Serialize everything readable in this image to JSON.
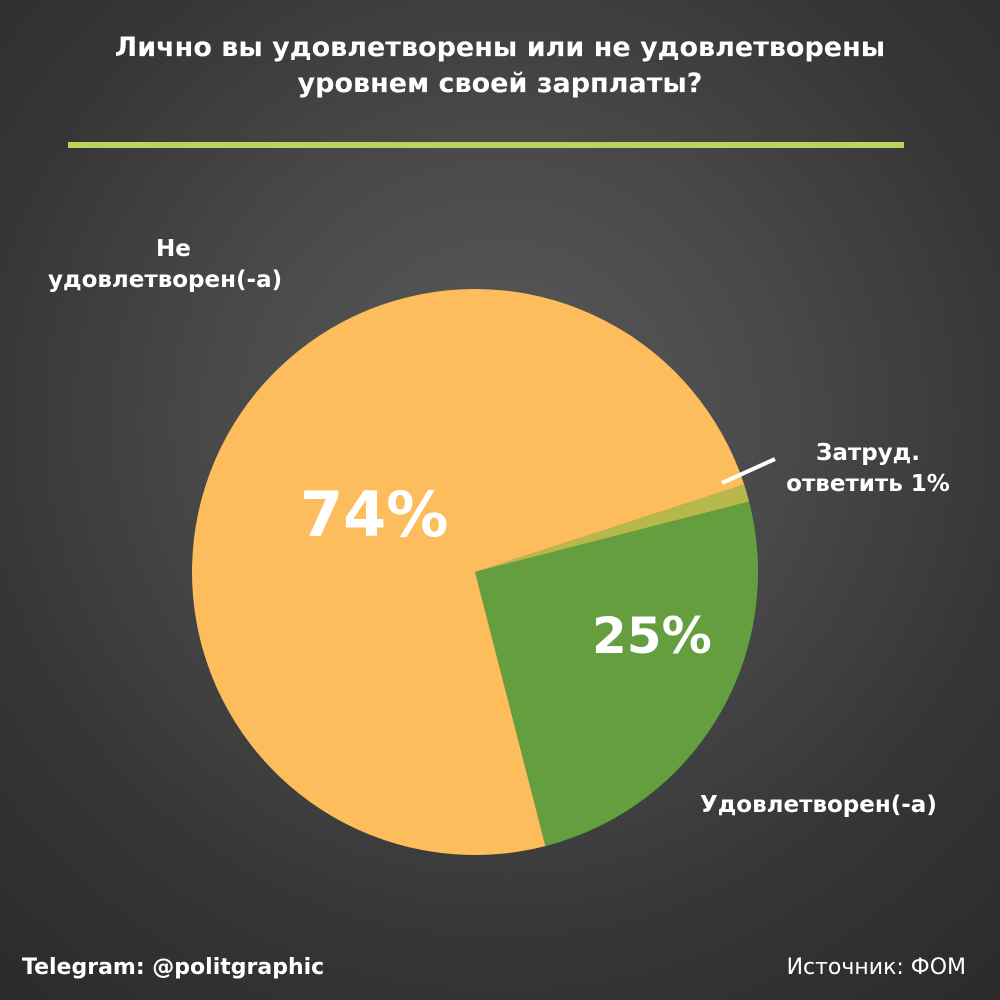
{
  "chart_data": {
    "type": "pie",
    "title": "Лично вы удовлетворены или не удовлетворены уровнем своей зарплаты?",
    "categories": [
      "Не удовлетворен(-а)",
      "Затруд. ответить 1%",
      "Удовлетворен(-а)"
    ],
    "values": [
      74,
      1,
      25
    ],
    "labels": {
      "unsatisfied_line1": "Не",
      "unsatisfied_line2": "удовлетворен(-а)",
      "hard_line1": "Затруд.",
      "hard_line2": "ответить 1%",
      "satisfied": "Удовлетворен(-а)"
    },
    "data_labels": [
      "74%",
      "",
      "25%"
    ],
    "colors": [
      "#fdbd5c",
      "#b6b84a",
      "#659e3f"
    ]
  },
  "accent_color": "#b7d65a",
  "footer": {
    "telegram": "Telegram: @politgraphic",
    "source": "Источник: ФОМ"
  }
}
